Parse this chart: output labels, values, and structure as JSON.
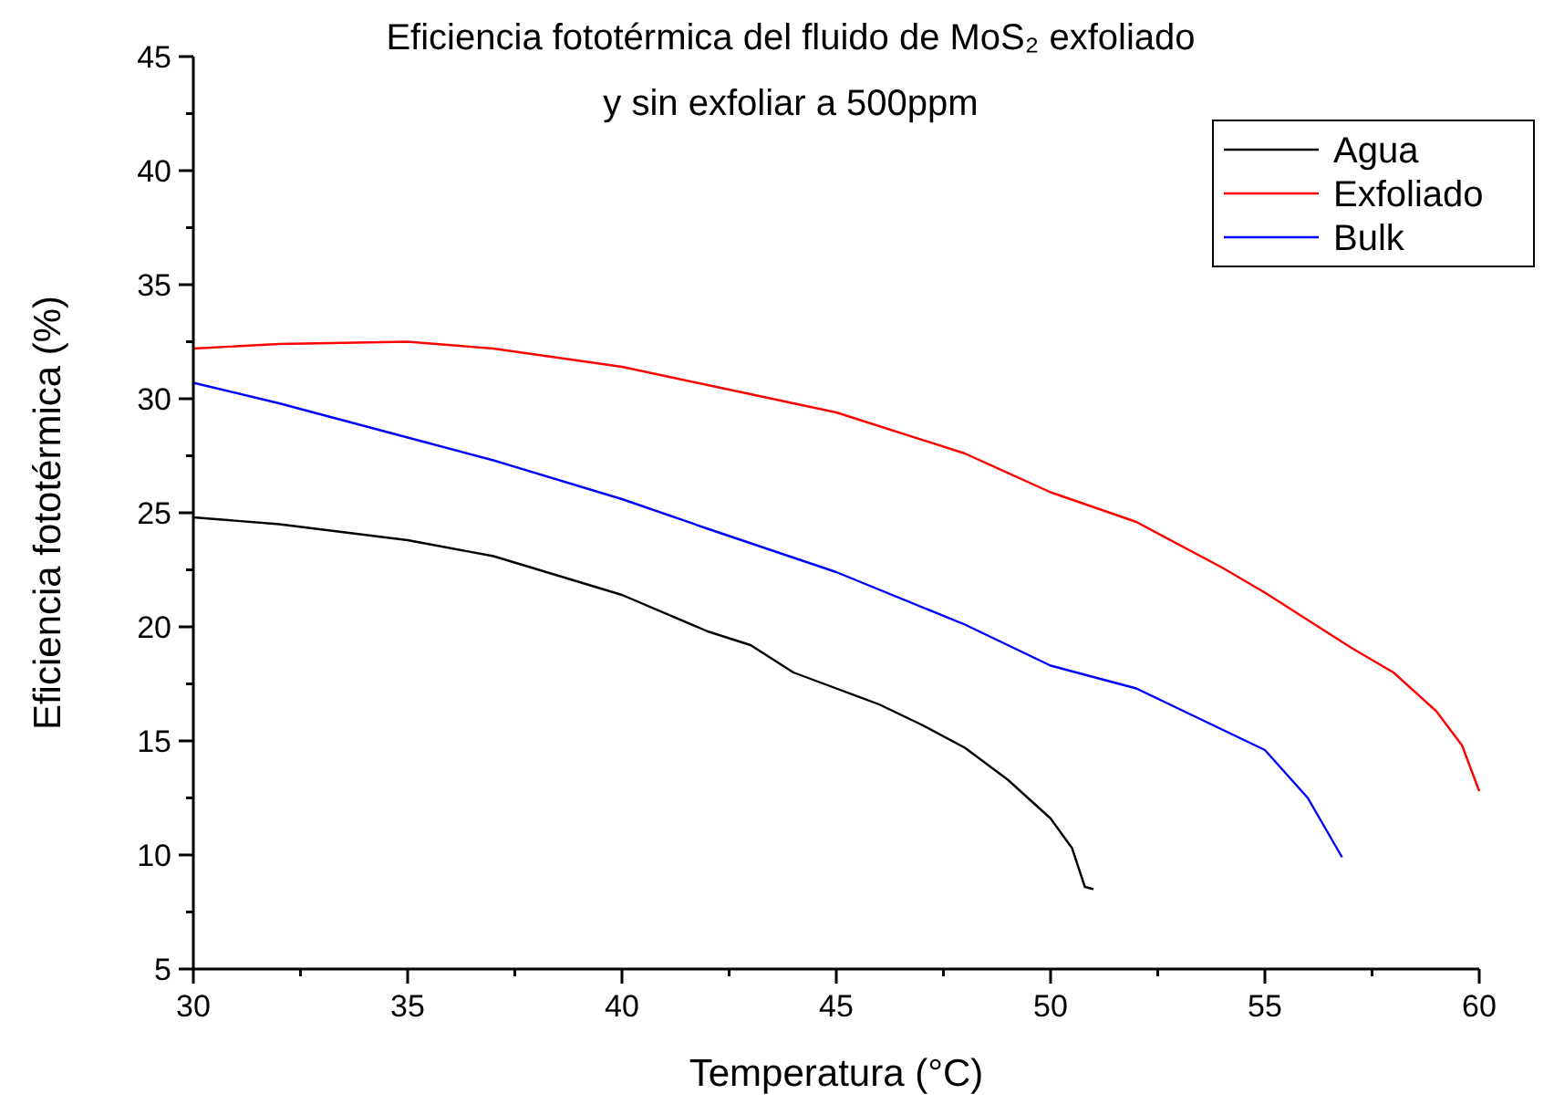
{
  "chart_data": {
    "type": "line",
    "title": "Eficiencia fototérmica del fluido de MoS₂ exfoliado\ny sin exfoliar a 500ppm",
    "xlabel": "Temperatura (°C)",
    "ylabel": "Eficiencia fototérmica (%)",
    "xlim": [
      30,
      60
    ],
    "ylim": [
      5,
      45
    ],
    "xticks": [
      30,
      {
        "value": 32.5,
        "label": null
      },
      35,
      {
        "value": 37.5,
        "label": null
      },
      40,
      {
        "value": 42.5,
        "label": null
      },
      45,
      {
        "value": 47.5,
        "label": null
      },
      50,
      {
        "value": 52.5,
        "label": null
      },
      55,
      {
        "value": 57.5,
        "label": null
      },
      60
    ],
    "yticks": [
      5,
      {
        "value": 7.5,
        "label": null
      },
      10,
      {
        "value": 12.5,
        "label": null
      },
      15,
      {
        "value": 17.5,
        "label": null
      },
      20,
      {
        "value": 22.5,
        "label": null
      },
      25,
      {
        "value": 27.5,
        "label": null
      },
      30,
      {
        "value": 32.5,
        "label": null
      },
      35,
      {
        "value": 37.5,
        "label": null
      },
      40,
      {
        "value": 42.5,
        "label": null
      },
      45
    ],
    "legend": "top right",
    "grid": false,
    "line_style": "solid",
    "series": [
      {
        "name": "Agua",
        "color": "#000000",
        "x": [
          30,
          32,
          35,
          37,
          40,
          42,
          43,
          44,
          45,
          46,
          47,
          48,
          49,
          50,
          50.5,
          50.8,
          51
        ],
        "values": [
          24.8,
          24.5,
          23.8,
          23.1,
          21.4,
          19.8,
          19.2,
          18.0,
          17.3,
          16.6,
          15.7,
          14.7,
          13.3,
          11.6,
          10.3,
          8.6,
          8.5
        ]
      },
      {
        "name": "Exfoliado",
        "color": "#ff0000",
        "x": [
          30,
          32,
          35,
          37,
          40,
          42,
          45,
          48,
          50,
          52,
          54,
          55,
          57,
          58,
          59,
          59.6,
          60
        ],
        "values": [
          32.2,
          32.4,
          32.5,
          32.2,
          31.4,
          30.6,
          29.4,
          27.6,
          25.9,
          24.6,
          22.6,
          21.5,
          19.1,
          18.0,
          16.3,
          14.8,
          12.8
        ]
      },
      {
        "name": "Bulk",
        "color": "#0000ff",
        "x": [
          30,
          32,
          35,
          37,
          40,
          42,
          45,
          48,
          50,
          52,
          54,
          55,
          56,
          56.8
        ],
        "values": [
          30.7,
          29.8,
          28.3,
          27.3,
          25.6,
          24.3,
          22.4,
          20.1,
          18.3,
          17.3,
          15.5,
          14.6,
          12.5,
          9.9
        ]
      }
    ]
  }
}
